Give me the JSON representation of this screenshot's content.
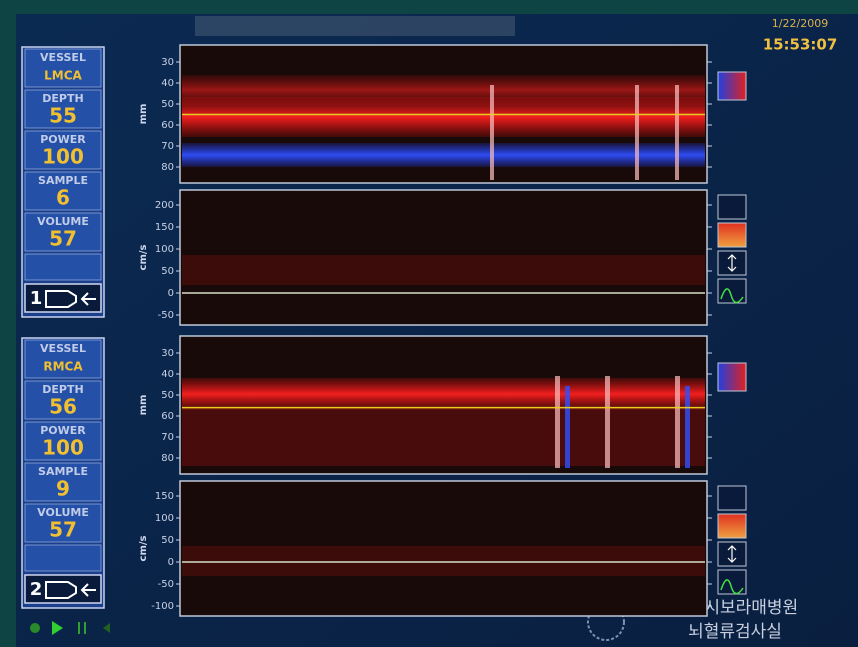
{
  "header": {
    "date": "1/22/2009",
    "time": "15:53:07"
  },
  "channels": [
    {
      "probe": "1",
      "vessel_label": "VESSEL",
      "vessel": "LMCA",
      "depth_label": "DEPTH",
      "depth": 55,
      "power_label": "POWER",
      "power": 100,
      "sample_label": "SAMPLE",
      "sample": 6,
      "volume_label": "VOLUME",
      "volume": 57,
      "mmode": {
        "unit": "mm",
        "ticks": [
          30,
          40,
          50,
          60,
          70,
          80
        ]
      },
      "spectrum": {
        "unit": "cm/s",
        "ticks": [
          200,
          150,
          100,
          50,
          0,
          -50
        ]
      }
    },
    {
      "probe": "2",
      "vessel_label": "VESSEL",
      "vessel": "RMCA",
      "depth_label": "DEPTH",
      "depth": 56,
      "power_label": "POWER",
      "power": 100,
      "sample_label": "SAMPLE",
      "sample": 9,
      "volume_label": "VOLUME",
      "volume": 57,
      "mmode": {
        "unit": "mm",
        "ticks": [
          30,
          40,
          50,
          60,
          70,
          80
        ]
      },
      "spectrum": {
        "unit": "cm/s",
        "ticks": [
          150,
          100,
          50,
          0,
          -50,
          -100
        ]
      }
    }
  ],
  "footer": {
    "line1": "서울특별시보라매병원",
    "line2": "뇌혈류검사실"
  }
}
